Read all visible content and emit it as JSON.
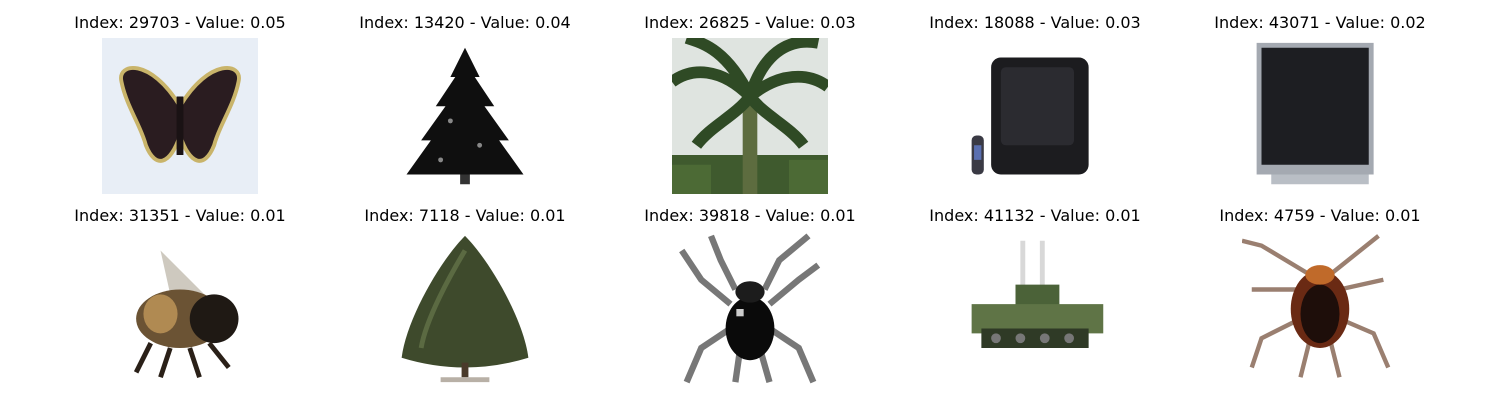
{
  "grid": {
    "items": [
      {
        "title": "Index: 29703 - Value: 0.05",
        "icon": "butterfly-icon"
      },
      {
        "title": "Index: 13420 - Value: 0.04",
        "icon": "pine-tree-icon"
      },
      {
        "title": "Index: 26825 - Value: 0.03",
        "icon": "palm-tree-icon"
      },
      {
        "title": "Index: 18088 - Value: 0.03",
        "icon": "crt-television-icon"
      },
      {
        "title": "Index: 43071 - Value: 0.02",
        "icon": "flatscreen-tv-icon"
      },
      {
        "title": "Index: 31351 - Value: 0.01",
        "icon": "bee-icon"
      },
      {
        "title": "Index: 7118 - Value: 0.01",
        "icon": "cone-tree-icon"
      },
      {
        "title": "Index: 39818 - Value: 0.01",
        "icon": "beetle-icon"
      },
      {
        "title": "Index: 41132 - Value: 0.01",
        "icon": "tank-icon"
      },
      {
        "title": "Index: 4759 - Value: 0.01",
        "icon": "cockroach-icon"
      }
    ]
  }
}
